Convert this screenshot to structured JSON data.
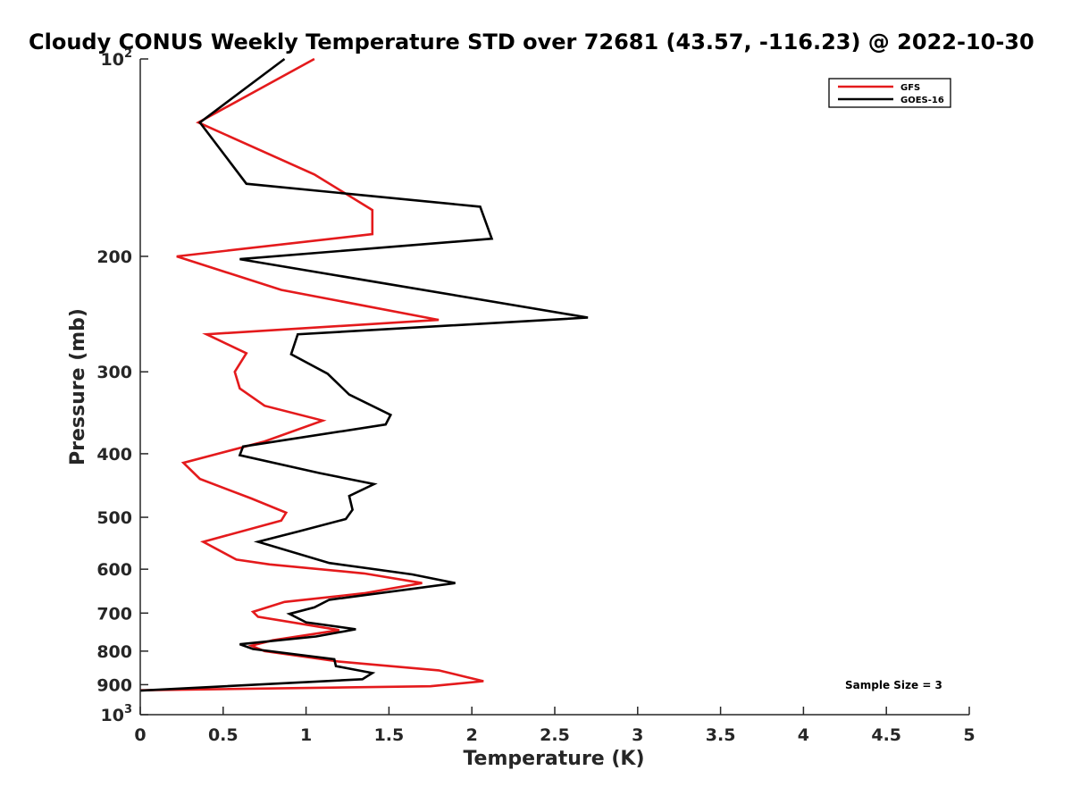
{
  "chart_data": {
    "type": "line",
    "title": "Cloudy CONUS Weekly Temperature STD over 72681 (43.57, -116.23) @ 2022-10-30",
    "xlabel": "Temperature (K)",
    "ylabel": "Pressure (mb)",
    "xlim": [
      0,
      5
    ],
    "ylim": [
      100,
      1000
    ],
    "y_scale": "log",
    "y_reversed": true,
    "grid": false,
    "legend_position": "top-right",
    "x_ticks": [
      "0",
      "0.5",
      "1",
      "1.5",
      "2",
      "2.5",
      "3",
      "3.5",
      "4",
      "4.5",
      "5"
    ],
    "y_ticks": [
      {
        "base": "10",
        "exp": "2",
        "value": 100
      },
      {
        "label": "200",
        "value": 200
      },
      {
        "label": "300",
        "value": 300
      },
      {
        "label": "400",
        "value": 400
      },
      {
        "label": "500",
        "value": 500
      },
      {
        "label": "600",
        "value": 600
      },
      {
        "label": "700",
        "value": 700
      },
      {
        "label": "800",
        "value": 800
      },
      {
        "label": "900",
        "value": 900
      },
      {
        "base": "10",
        "exp": "3",
        "value": 1000
      }
    ],
    "series": [
      {
        "name": "GFS",
        "color": "#e41a1c",
        "points": [
          [
            1.05,
            100
          ],
          [
            0.35,
            125
          ],
          [
            1.05,
            150
          ],
          [
            1.4,
            170
          ],
          [
            1.4,
            185
          ],
          [
            0.22,
            200
          ],
          [
            0.85,
            225
          ],
          [
            1.8,
            250
          ],
          [
            0.4,
            263
          ],
          [
            0.64,
            281
          ],
          [
            0.57,
            300
          ],
          [
            0.6,
            318
          ],
          [
            0.75,
            338
          ],
          [
            1.1,
            356
          ],
          [
            0.75,
            383
          ],
          [
            0.26,
            413
          ],
          [
            0.36,
            437
          ],
          [
            0.67,
            468
          ],
          [
            0.88,
            492
          ],
          [
            0.85,
            506
          ],
          [
            0.38,
            545
          ],
          [
            0.58,
            580
          ],
          [
            0.78,
            590
          ],
          [
            1.35,
            609
          ],
          [
            1.7,
            630
          ],
          [
            1.35,
            653
          ],
          [
            0.87,
            673
          ],
          [
            0.68,
            697
          ],
          [
            0.71,
            709
          ],
          [
            1.2,
            743
          ],
          [
            0.8,
            770
          ],
          [
            0.67,
            785
          ],
          [
            0.75,
            800
          ],
          [
            1.2,
            830
          ],
          [
            1.8,
            856
          ],
          [
            1.95,
            874
          ],
          [
            2.07,
            889
          ],
          [
            1.75,
            905
          ],
          [
            0.0,
            918
          ]
        ]
      },
      {
        "name": "GOES-16",
        "color": "#000000",
        "points": [
          [
            0.87,
            100
          ],
          [
            0.36,
            125
          ],
          [
            0.64,
            155
          ],
          [
            2.05,
            168
          ],
          [
            2.12,
            188
          ],
          [
            0.6,
            202
          ],
          [
            2.7,
            248
          ],
          [
            0.95,
            263
          ],
          [
            0.91,
            282
          ],
          [
            1.13,
            302
          ],
          [
            1.26,
            325
          ],
          [
            1.51,
            349
          ],
          [
            1.48,
            361
          ],
          [
            0.62,
            390
          ],
          [
            0.6,
            402
          ],
          [
            1.08,
            428
          ],
          [
            1.41,
            445
          ],
          [
            1.26,
            464
          ],
          [
            1.28,
            487
          ],
          [
            1.24,
            503
          ],
          [
            0.96,
            525
          ],
          [
            0.71,
            545
          ],
          [
            1.14,
            587
          ],
          [
            1.64,
            611
          ],
          [
            1.9,
            630
          ],
          [
            1.14,
            668
          ],
          [
            1.05,
            686
          ],
          [
            0.9,
            702
          ],
          [
            1.0,
            723
          ],
          [
            1.3,
            741
          ],
          [
            1.06,
            760
          ],
          [
            0.6,
            781
          ],
          [
            0.68,
            794
          ],
          [
            1.17,
            823
          ],
          [
            1.18,
            843
          ],
          [
            1.4,
            864
          ],
          [
            1.34,
            883
          ],
          [
            0.0,
            919
          ]
        ]
      }
    ],
    "annotations": [
      {
        "text": "Sample Size = 3"
      }
    ]
  }
}
